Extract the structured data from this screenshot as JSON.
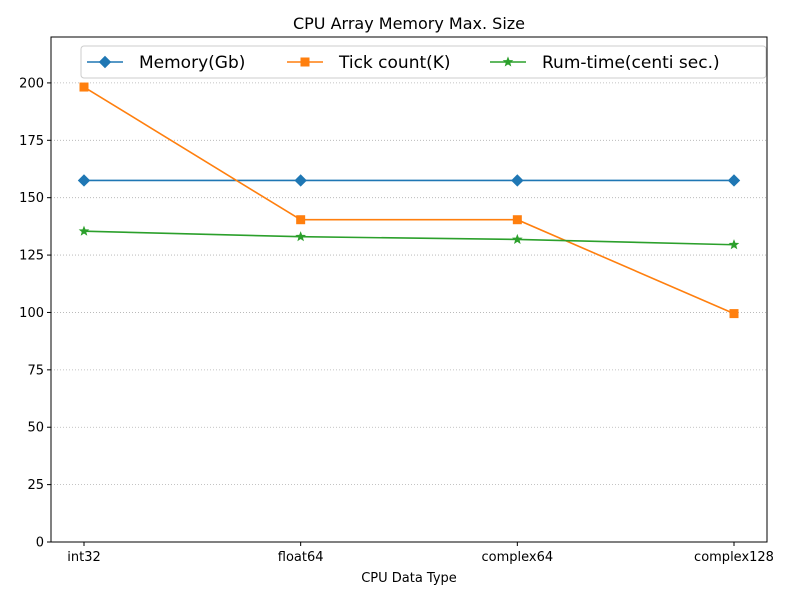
{
  "chart_data": {
    "type": "line",
    "title": "CPU Array Memory Max. Size",
    "xlabel": "CPU Data Type",
    "ylabel": "",
    "categories": [
      "int32",
      "float64",
      "complex64",
      "complex128"
    ],
    "ylim": [
      0,
      220
    ],
    "yticks": [
      0,
      25,
      50,
      75,
      100,
      125,
      150,
      175,
      200
    ],
    "grid": "horizontal dotted",
    "legend_position": "top",
    "series": [
      {
        "name": "Memory(Gb)",
        "values": [
          157.5,
          157.5,
          157.5,
          157.5
        ],
        "color": "#1f77b4",
        "marker": "diamond"
      },
      {
        "name": "Tick count(K)",
        "values": [
          198.2,
          140.4,
          140.4,
          99.5
        ],
        "color": "#ff7f0e",
        "marker": "square"
      },
      {
        "name": "Rum-time(centi sec.)",
        "values": [
          135.4,
          133.0,
          131.8,
          129.5
        ],
        "color": "#2ca02c",
        "marker": "star"
      }
    ]
  }
}
